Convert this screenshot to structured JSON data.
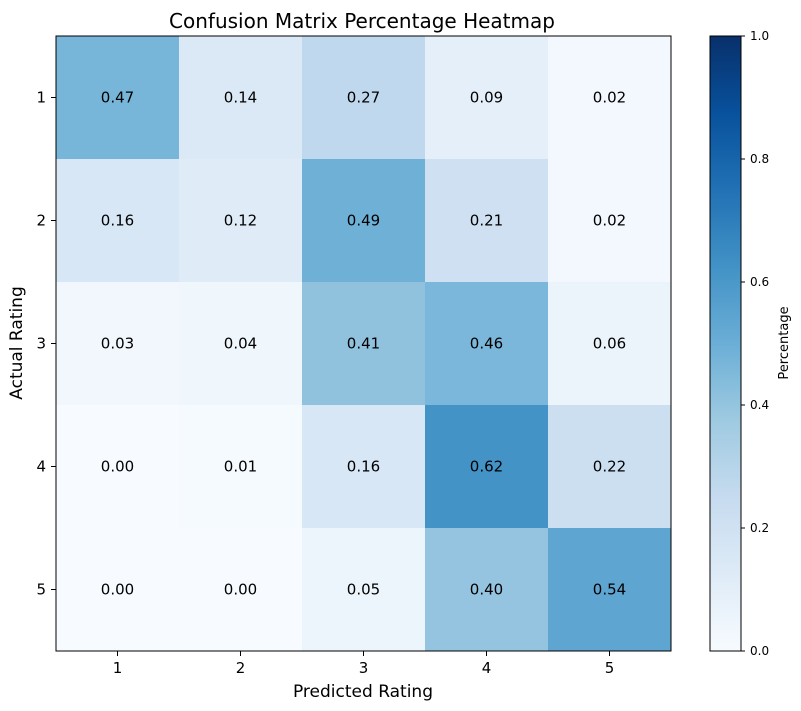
{
  "chart_data": {
    "type": "heatmap",
    "title": "Confusion Matrix Percentage Heatmap",
    "xlabel": "Predicted Rating",
    "ylabel": "Actual Rating",
    "x_categories": [
      "1",
      "2",
      "3",
      "4",
      "5"
    ],
    "y_categories": [
      "1",
      "2",
      "3",
      "4",
      "5"
    ],
    "values": [
      [
        0.47,
        0.14,
        0.27,
        0.09,
        0.02
      ],
      [
        0.16,
        0.12,
        0.49,
        0.21,
        0.02
      ],
      [
        0.03,
        0.04,
        0.41,
        0.46,
        0.06
      ],
      [
        0.0,
        0.01,
        0.16,
        0.62,
        0.22
      ],
      [
        0.0,
        0.0,
        0.05,
        0.4,
        0.54
      ]
    ],
    "colormap": "Blues",
    "colorbar": {
      "label": "Percentage",
      "range": [
        0,
        1
      ],
      "ticks": [
        "0.0",
        "0.2",
        "0.4",
        "0.6",
        "0.8",
        "1.0"
      ]
    },
    "grid": false
  }
}
